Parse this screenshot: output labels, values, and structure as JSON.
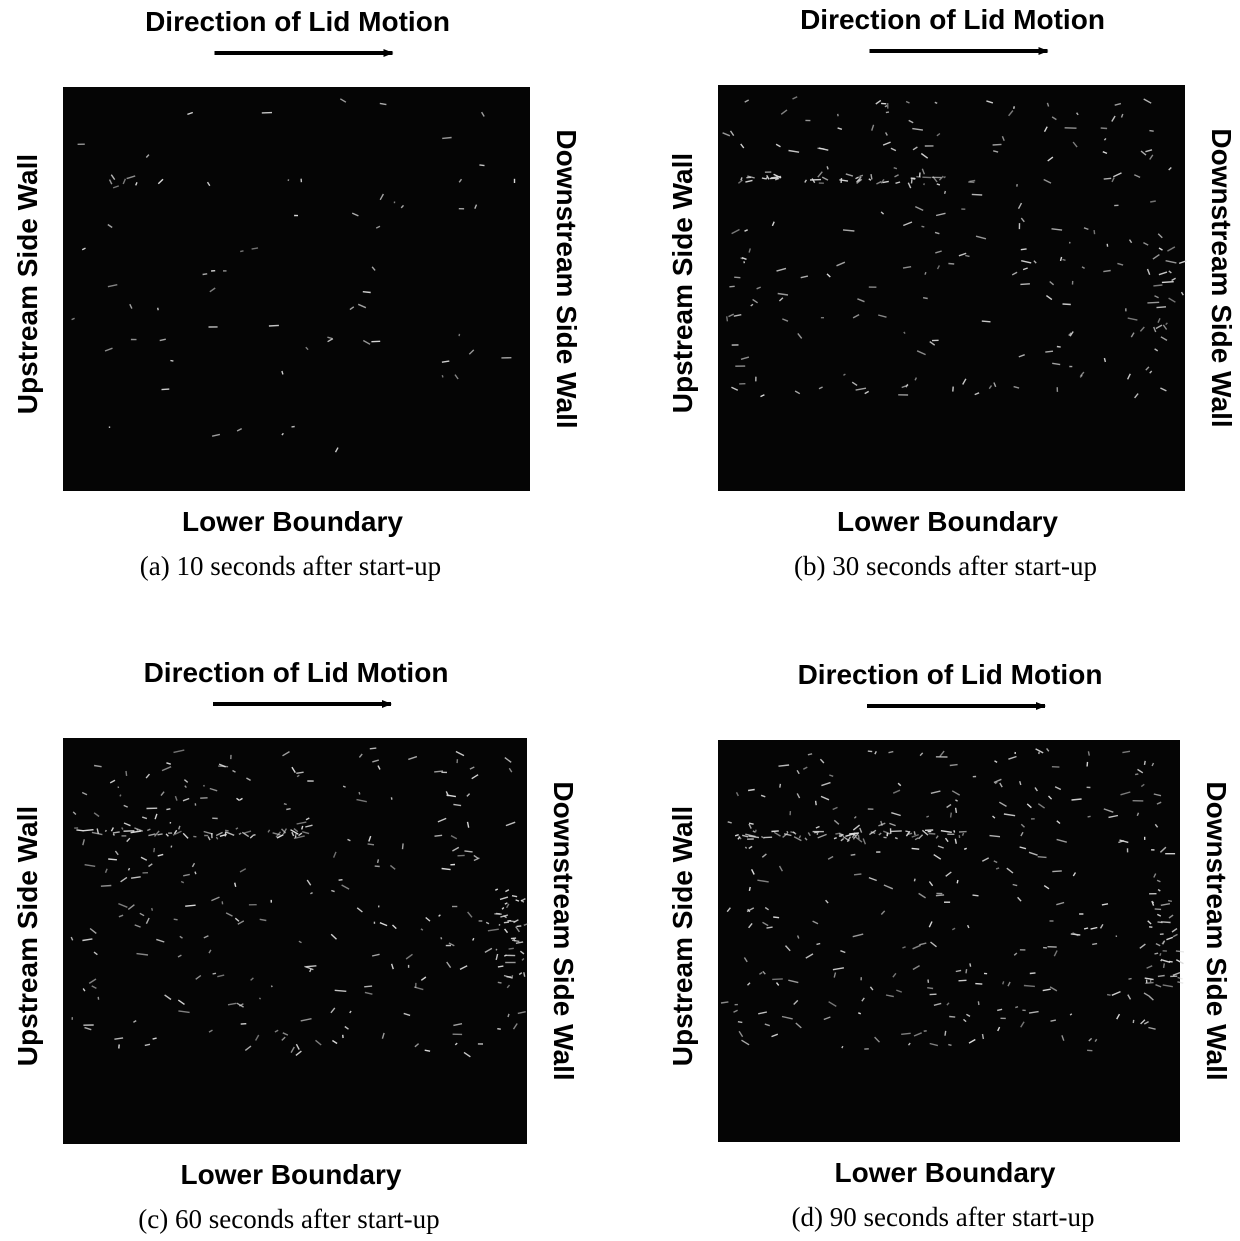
{
  "figure": {
    "panels": [
      {
        "top_label": "Direction of Lid Motion",
        "left_label": "Upstream Side Wall",
        "right_label": "Downstream Side Wall",
        "bottom_label": "Lower Boundary",
        "caption": "(a) 10 seconds after start-up"
      },
      {
        "top_label": "Direction of Lid Motion",
        "left_label": "Upstream Side Wall",
        "right_label": "Downstream Side Wall",
        "bottom_label": "Lower Boundary",
        "caption": "(b) 30 seconds after start-up"
      },
      {
        "top_label": "Direction of Lid Motion",
        "left_label": "Upstream Side Wall",
        "right_label": "Downstream Side Wall",
        "bottom_label": "Lower Boundary",
        "caption": "(c) 60 seconds after start-up"
      },
      {
        "top_label": "Direction of Lid Motion",
        "left_label": "Upstream Side Wall",
        "right_label": "Downstream Side Wall",
        "bottom_label": "Lower Boundary",
        "caption": "(d) 90 seconds after start-up"
      }
    ]
  }
}
